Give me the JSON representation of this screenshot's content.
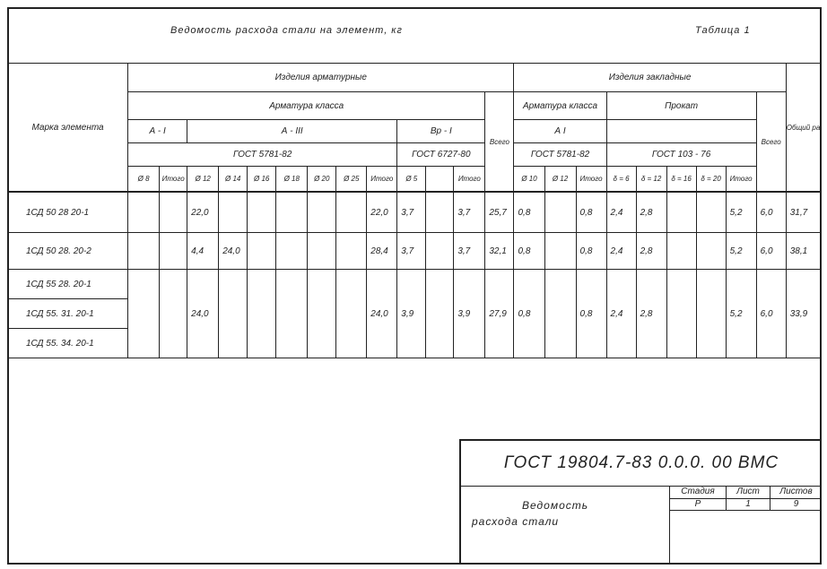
{
  "title": "Ведомость расхода стали на элемент, кг",
  "table_no": "Таблица 1",
  "header": {
    "mark": "Марка элемента",
    "reinf_products": "Изделия арматурные",
    "embedded_products": "Изделия закладные",
    "total_consumption": "Общий расход",
    "rebar_class": "Арматура класса",
    "rebar_class_emb": "Арматура класса",
    "rolled": "Прокат",
    "total": "Всего",
    "total_emb": "Всего",
    "a1": "А - I",
    "a3": "А - III",
    "bp1": "Вр - I",
    "a1_emb": "А I",
    "gost_5781": "ГОСТ 5781-82",
    "gost_6727": "ГОСТ 6727-80",
    "gost_5781_emb": "ГОСТ 5781-82",
    "gost_103": "ГОСТ 103 - 76",
    "subcols": [
      "Ø 8",
      "Итого",
      "Ø 12",
      "Ø 14",
      "Ø 16",
      "Ø 18",
      "Ø 20",
      "Ø 25",
      "Итого",
      "Ø 5",
      "",
      "Итого",
      "Ø 10",
      "Ø 12",
      "Итого",
      "δ = 6",
      "δ = 12",
      "δ = 16",
      "δ = 20",
      "Итого"
    ]
  },
  "rows": [
    {
      "marks": [
        "1СД 50 28 20-1"
      ],
      "values": [
        "",
        "",
        "22,0",
        "",
        "",
        "",
        "",
        "",
        "22,0",
        "3,7",
        "",
        "3,7",
        "25,7",
        "0,8",
        "",
        "0,8",
        "2,4",
        "2,8",
        "",
        "",
        "5,2",
        "6,0",
        "31,7"
      ]
    },
    {
      "marks": [
        "1СД 50 28. 20-2"
      ],
      "values": [
        "",
        "",
        "4,4",
        "24,0",
        "",
        "",
        "",
        "",
        "28,4",
        "3,7",
        "",
        "3,7",
        "32,1",
        "0,8",
        "",
        "0,8",
        "2,4",
        "2,8",
        "",
        "",
        "5,2",
        "6,0",
        "38,1"
      ]
    },
    {
      "marks": [
        "1СД 55 28. 20-1",
        "1СД 55. 31. 20-1",
        "1СД 55. 34. 20-1"
      ],
      "values": [
        "",
        "",
        "24,0",
        "",
        "",
        "",
        "",
        "",
        "24,0",
        "3,9",
        "",
        "3,9",
        "27,9",
        "0,8",
        "",
        "0,8",
        "2,4",
        "2,8",
        "",
        "",
        "5,2",
        "6,0",
        "33,9"
      ]
    }
  ],
  "title_block": {
    "code": "ГОСТ 19804.7-83 0.0.0. 00 ВМС",
    "name_line1": "Ведомость",
    "name_line2": "расхода стали",
    "stage_label": "Стадия",
    "sheet_label": "Лист",
    "sheets_label": "Листов",
    "stage": "Р",
    "sheet": "1",
    "sheets": "9"
  }
}
